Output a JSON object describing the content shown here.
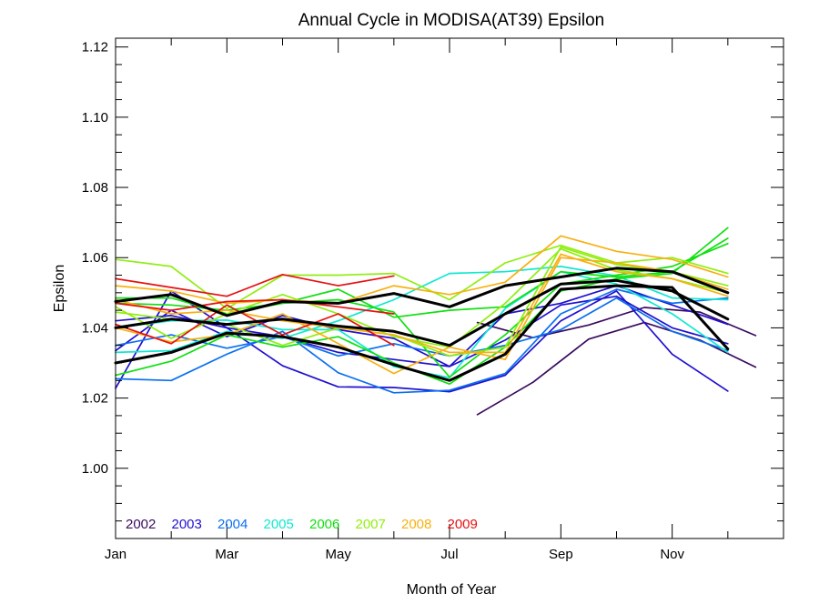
{
  "chart_data": {
    "type": "line",
    "title": "Annual Cycle in MODISA(AT39) Epsilon",
    "xlabel": "Month of Year",
    "ylabel": "Epsilon",
    "xlim": [
      1,
      13
    ],
    "ylim": [
      0.98,
      1.1225
    ],
    "x_ticks": [
      1,
      3,
      5,
      7,
      9,
      11
    ],
    "x_tick_labels": [
      "Jan",
      "Mar",
      "May",
      "Jul",
      "Sep",
      "Nov"
    ],
    "x_minor_ticks": [
      2,
      4,
      6,
      8,
      10,
      12
    ],
    "y_ticks": [
      1.0,
      1.02,
      1.04,
      1.06,
      1.08,
      1.1,
      1.12
    ],
    "y_tick_labels": [
      "1.00",
      "1.02",
      "1.04",
      "1.06",
      "1.08",
      "1.10",
      "1.12"
    ],
    "grid": false,
    "legend_position": "bottom-left",
    "series": [
      {
        "name": "2002",
        "color": "#3a0a5e",
        "x": [
          7.5,
          8.5,
          9.5,
          10.5,
          11.5,
          12.5
        ],
        "y": [
          1.0153,
          1.0245,
          1.0368,
          1.0415,
          1.0365,
          1.0288
        ]
      },
      {
        "name": "2002",
        "color": "#3a0a5e",
        "x": [
          7.5,
          8.5,
          9.5,
          10.5,
          11.5,
          12.5
        ],
        "y": [
          1.0415,
          1.0372,
          1.0408,
          1.0458,
          1.0445,
          1.0378
        ]
      },
      {
        "name": "2003",
        "color": "#2010d0",
        "x": [
          1,
          2,
          3,
          4,
          5,
          6,
          7,
          8,
          9,
          10,
          11,
          12
        ],
        "y": [
          1.0228,
          1.0505,
          1.04,
          1.0292,
          1.0232,
          1.023,
          1.0218,
          1.0265,
          1.042,
          1.0505,
          1.0325,
          1.022
        ]
      },
      {
        "name": "2003",
        "color": "#2010d0",
        "x": [
          1,
          2,
          3,
          4,
          5,
          6,
          7,
          8,
          9,
          10,
          11,
          12
        ],
        "y": [
          1.0335,
          1.045,
          1.0375,
          1.0435,
          1.0395,
          1.037,
          1.029,
          1.0365,
          1.0465,
          1.049,
          1.04,
          1.0355
        ]
      },
      {
        "name": "2003",
        "color": "#2010d0",
        "x": [
          1,
          2,
          3,
          4,
          5,
          6,
          7,
          8,
          9,
          10,
          11,
          12
        ],
        "y": [
          1.042,
          1.0435,
          1.04,
          1.0375,
          1.033,
          1.031,
          1.029,
          1.044,
          1.047,
          1.052,
          1.0465,
          1.041
        ]
      },
      {
        "name": "2004",
        "color": "#0a70f0",
        "x": [
          1,
          2,
          3,
          4,
          5,
          6,
          7,
          8,
          9,
          10,
          11,
          12
        ],
        "y": [
          1.0255,
          1.025,
          1.0325,
          1.039,
          1.0272,
          1.0215,
          1.0222,
          1.027,
          1.044,
          1.051,
          1.047,
          1.0485
        ]
      },
      {
        "name": "2004",
        "color": "#0a70f0",
        "x": [
          1,
          2,
          3,
          4,
          5,
          6,
          7,
          8,
          9,
          10,
          11,
          12
        ],
        "y": [
          1.035,
          1.038,
          1.0342,
          1.0375,
          1.032,
          1.0355,
          1.032,
          1.035,
          1.0395,
          1.0485,
          1.039,
          1.0335
        ]
      },
      {
        "name": "2005",
        "color": "#10e8d0",
        "x": [
          1,
          2,
          3,
          4,
          5,
          6,
          7,
          8,
          9,
          10,
          11,
          12
        ],
        "y": [
          1.033,
          1.0335,
          1.039,
          1.037,
          1.042,
          1.048,
          1.0555,
          1.056,
          1.0575,
          1.0548,
          1.0485,
          1.048
        ]
      },
      {
        "name": "2005",
        "color": "#10e8d0",
        "x": [
          1,
          2,
          3,
          4,
          5,
          6,
          7,
          8,
          9,
          10,
          11,
          12
        ],
        "y": [
          1.04,
          1.042,
          1.0422,
          1.0395,
          1.0395,
          1.029,
          1.0258,
          1.0455,
          1.056,
          1.0525,
          1.044,
          1.033
        ]
      },
      {
        "name": "2006",
        "color": "#10e010",
        "x": [
          1,
          2,
          3,
          4,
          5,
          6,
          7,
          8,
          9,
          10,
          11,
          12
        ],
        "y": [
          1.0265,
          1.0305,
          1.038,
          1.0345,
          1.0375,
          1.03,
          1.024,
          1.0345,
          1.0505,
          1.054,
          1.0555,
          1.0685
        ]
      },
      {
        "name": "2006",
        "color": "#10e010",
        "x": [
          1,
          2,
          3,
          4,
          5,
          6,
          7,
          8,
          9,
          10,
          11,
          12
        ],
        "y": [
          1.047,
          1.0465,
          1.045,
          1.047,
          1.051,
          1.043,
          1.045,
          1.046,
          1.056,
          1.0545,
          1.056,
          1.0655
        ]
      },
      {
        "name": "2006",
        "color": "#10e010",
        "x": [
          1,
          2,
          3,
          4,
          5,
          6,
          7,
          8,
          9,
          10,
          11,
          12
        ],
        "y": [
          1.0485,
          1.0485,
          1.044,
          1.047,
          1.048,
          1.0445,
          1.026,
          1.038,
          1.0525,
          1.055,
          1.0575,
          1.064
        ]
      },
      {
        "name": "2007",
        "color": "#90ee10",
        "x": [
          1,
          2,
          3,
          4,
          5,
          6,
          7,
          8,
          9,
          10,
          11,
          12
        ],
        "y": [
          1.0595,
          1.0575,
          1.0455,
          1.055,
          1.055,
          1.0555,
          1.048,
          1.0585,
          1.0635,
          1.0585,
          1.06,
          1.0555
        ]
      },
      {
        "name": "2007",
        "color": "#90ee10",
        "x": [
          1,
          2,
          3,
          4,
          5,
          6,
          7,
          8,
          9,
          10,
          11,
          12
        ],
        "y": [
          1.046,
          1.037,
          1.044,
          1.0495,
          1.044,
          1.0375,
          1.0345,
          1.047,
          1.0625,
          1.0565,
          1.054,
          1.05
        ]
      },
      {
        "name": "2007",
        "color": "#90ee10",
        "x": [
          1,
          2,
          3,
          4,
          5,
          6,
          7,
          8,
          9,
          10,
          11,
          12
        ],
        "y": [
          1.0445,
          1.0425,
          1.041,
          1.035,
          1.04,
          1.038,
          1.032,
          1.0345,
          1.063,
          1.058,
          1.056,
          1.052
        ]
      },
      {
        "name": "2008",
        "color": "#f8b010",
        "x": [
          1,
          2,
          3,
          4,
          5,
          6,
          7,
          8,
          9,
          10,
          11,
          12
        ],
        "y": [
          1.052,
          1.0505,
          1.047,
          1.048,
          1.047,
          1.052,
          1.0495,
          1.053,
          1.0662,
          1.0618,
          1.0595,
          1.0545
        ]
      },
      {
        "name": "2008",
        "color": "#f8b010",
        "x": [
          1,
          2,
          3,
          4,
          5,
          6,
          7,
          8,
          9,
          10,
          11,
          12
        ],
        "y": [
          1.04,
          1.036,
          1.038,
          1.044,
          1.0355,
          1.027,
          1.0345,
          1.031,
          1.06,
          1.0585,
          1.056,
          1.051
        ]
      },
      {
        "name": "2008",
        "color": "#f8b010",
        "x": [
          1,
          2,
          3,
          4,
          5,
          6,
          7,
          8,
          9,
          10,
          11,
          12
        ],
        "y": [
          1.048,
          1.044,
          1.045,
          1.042,
          1.04,
          1.038,
          1.033,
          1.033,
          1.061,
          1.056,
          1.054,
          1.049
        ]
      },
      {
        "name": "2009",
        "color": "#e81010",
        "x": [
          1,
          2,
          3,
          4,
          5,
          6
        ],
        "y": [
          1.054,
          1.0515,
          1.049,
          1.0552,
          1.052,
          1.0548
        ]
      },
      {
        "name": "2009",
        "color": "#e81010",
        "x": [
          1,
          2,
          3,
          4,
          5,
          6
        ],
        "y": [
          1.047,
          1.045,
          1.0475,
          1.048,
          1.046,
          1.044
        ]
      },
      {
        "name": "2009",
        "color": "#e81010",
        "x": [
          1,
          2,
          3,
          4,
          5,
          6
        ],
        "y": [
          1.041,
          1.0355,
          1.0465,
          1.038,
          1.044,
          1.035
        ]
      },
      {
        "name": "",
        "color": "#000000",
        "bold": true,
        "x": [
          1,
          2,
          3,
          4,
          5,
          6,
          7,
          8,
          9,
          10,
          11,
          12
        ],
        "y": [
          1.0475,
          1.0495,
          1.0435,
          1.0475,
          1.047,
          1.0498,
          1.046,
          1.052,
          1.0545,
          1.057,
          1.056,
          1.05
        ]
      },
      {
        "name": "",
        "color": "#000000",
        "bold": true,
        "x": [
          1,
          2,
          3,
          4,
          5,
          6,
          7,
          8,
          9,
          10,
          11,
          12
        ],
        "y": [
          1.04,
          1.0425,
          1.041,
          1.0425,
          1.0405,
          1.039,
          1.035,
          1.044,
          1.0525,
          1.0535,
          1.0505,
          1.0425
        ]
      },
      {
        "name": "",
        "color": "#000000",
        "bold": true,
        "x": [
          1,
          2,
          3,
          4,
          5,
          6,
          7,
          8,
          9,
          10,
          11,
          12
        ],
        "y": [
          1.03,
          1.033,
          1.0385,
          1.0375,
          1.0345,
          1.0295,
          1.025,
          1.0325,
          1.051,
          1.052,
          1.0515,
          1.034
        ]
      }
    ],
    "legend": [
      {
        "label": "2002",
        "color": "#3a0a5e"
      },
      {
        "label": "2003",
        "color": "#2010d0"
      },
      {
        "label": "2004",
        "color": "#0a70f0"
      },
      {
        "label": "2005",
        "color": "#10e8d0"
      },
      {
        "label": "2006",
        "color": "#10e010"
      },
      {
        "label": "2007",
        "color": "#90ee10"
      },
      {
        "label": "2008",
        "color": "#f8b010"
      },
      {
        "label": "2009",
        "color": "#e81010"
      }
    ]
  }
}
